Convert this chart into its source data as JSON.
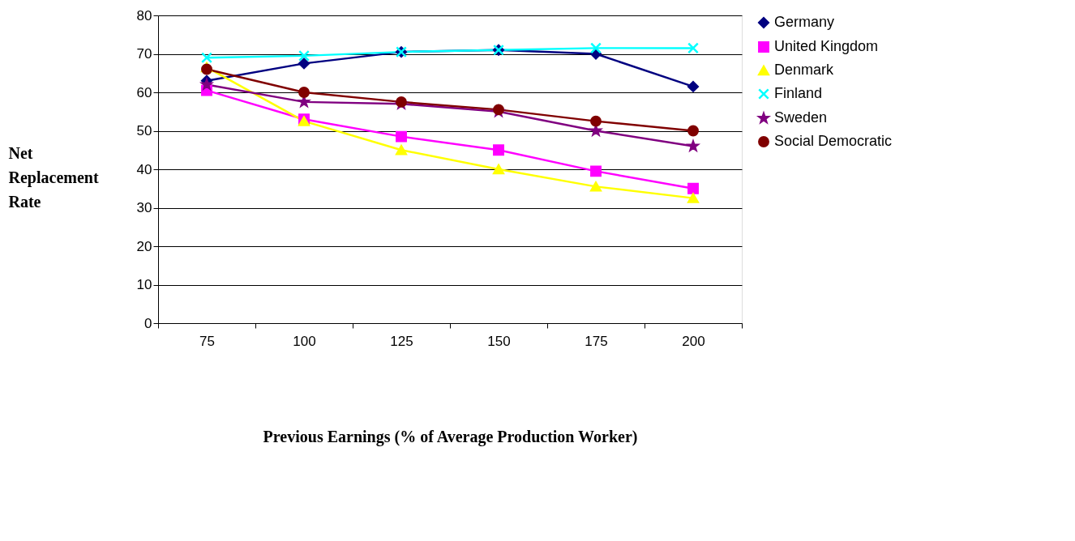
{
  "chart_data": {
    "type": "line",
    "xlabel": "Previous Earnings (% of Average Production Worker)",
    "ylabel": "Net Replacement Rate",
    "categories": [
      "75",
      "100",
      "125",
      "150",
      "175",
      "200"
    ],
    "series": [
      {
        "name": "Germany",
        "color": "#000080",
        "marker": "diamond",
        "values": [
          63,
          67.5,
          70.5,
          71,
          70,
          61.5
        ]
      },
      {
        "name": "United Kingdom",
        "color": "#ff00ff",
        "marker": "square",
        "values": [
          60.5,
          53,
          48.5,
          45,
          39.5,
          35
        ]
      },
      {
        "name": "Denmark",
        "color": "#ffff00",
        "marker": "triangle",
        "values": [
          66.5,
          52.5,
          45,
          40,
          35.5,
          32.5
        ]
      },
      {
        "name": "Finland",
        "color": "#00ffff",
        "marker": "cross",
        "values": [
          69,
          69.5,
          70.5,
          71,
          71.5,
          71.5
        ]
      },
      {
        "name": "Sweden",
        "color": "#800080",
        "marker": "star",
        "values": [
          62,
          57.5,
          57,
          55,
          50,
          46
        ]
      },
      {
        "name": "Social Democratic",
        "color": "#800000",
        "marker": "circle",
        "values": [
          66,
          60,
          57.5,
          55.5,
          52.5,
          50
        ]
      }
    ],
    "ylim": [
      0,
      80
    ],
    "yticks": [
      0,
      10,
      20,
      30,
      40,
      50,
      60,
      70,
      80
    ],
    "grid": "y",
    "legend": "right",
    "line_style": "solid"
  }
}
